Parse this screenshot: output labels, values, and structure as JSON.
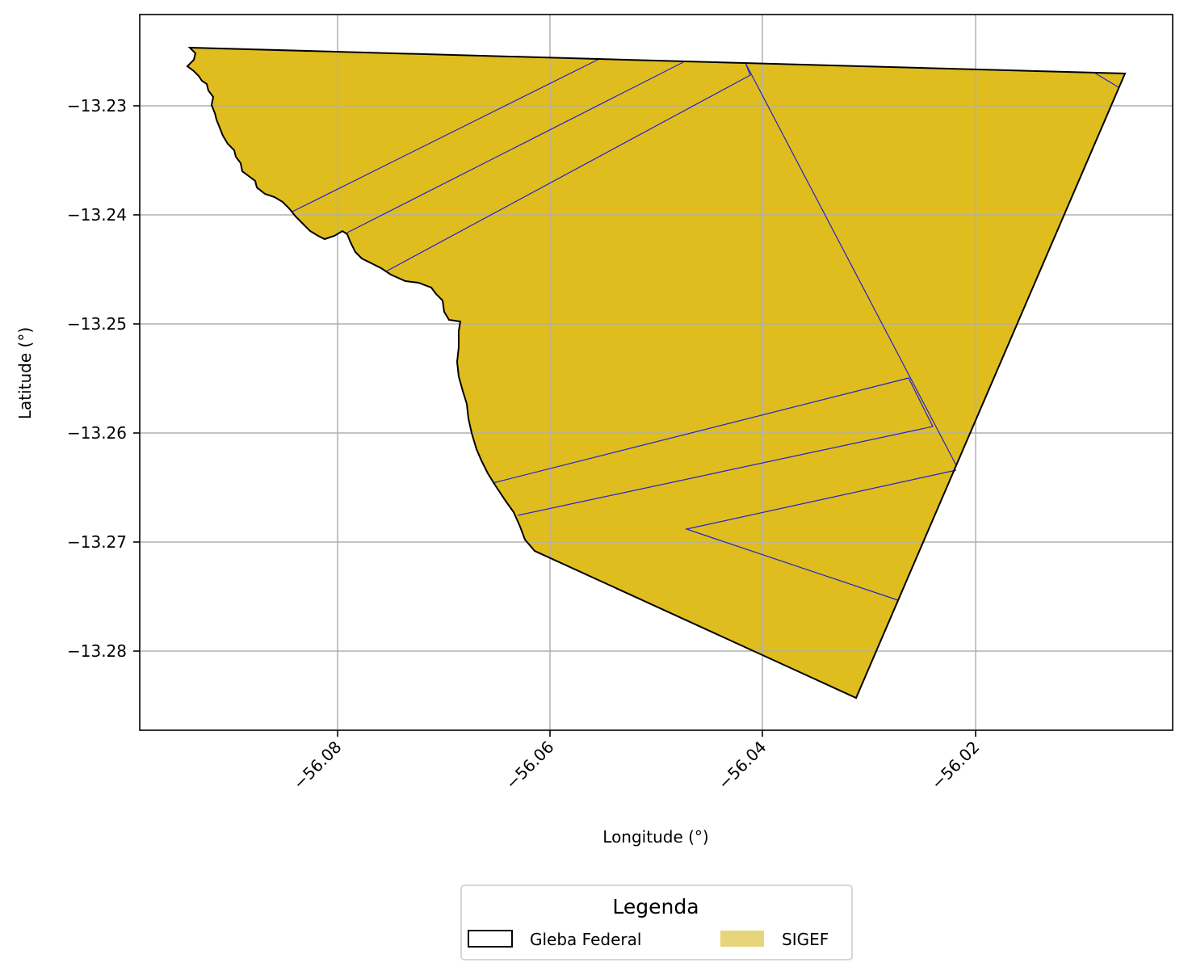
{
  "map": {
    "xlabel": "Longitude (°)",
    "ylabel": "Latitude (°)",
    "x_ticks": [
      "−56.08",
      "−56.06",
      "−56.04",
      "−56.02"
    ],
    "y_ticks": [
      "−13.23",
      "−13.24",
      "−13.25",
      "−13.26",
      "−13.27",
      "−13.28"
    ],
    "grid": true,
    "legend": {
      "title": "Legenda",
      "items": [
        {
          "label": "Gleba Federal",
          "style": "outline"
        },
        {
          "label": "SIGEF",
          "style": "fill"
        }
      ],
      "placement": "bottom-center"
    },
    "colors": {
      "sigef_fill": "#dfbd1f",
      "sigef_legend": "#e8d47a",
      "parcel_lines": "#2222cc",
      "gleba_outline": "#000000",
      "grid": "#b0b0b0"
    }
  }
}
